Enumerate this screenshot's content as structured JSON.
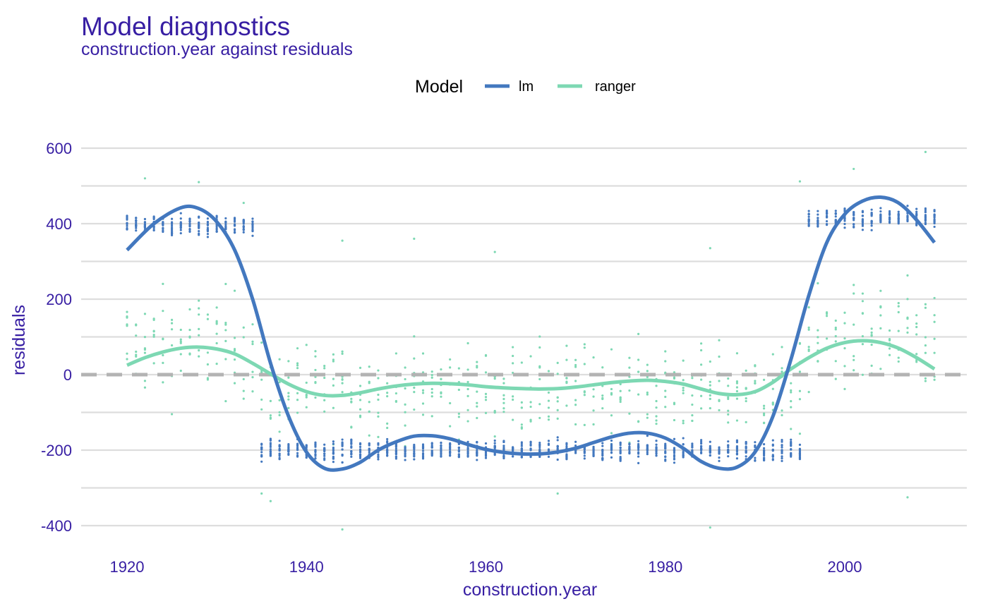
{
  "chart_data": {
    "type": "scatter",
    "title": "Model diagnostics",
    "subtitle": "construction.year against residuals",
    "xlabel": "construction.year",
    "ylabel": "residuals",
    "xlim": [
      1917,
      2013
    ],
    "ylim": [
      -460,
      650
    ],
    "x_ticks": [
      1920,
      1940,
      1960,
      1980,
      2000
    ],
    "y_ticks": [
      -400,
      -200,
      0,
      200,
      400,
      600
    ],
    "x_tick_labels": [
      "1920",
      "1940",
      "1960",
      "1980",
      "2000"
    ],
    "y_tick_labels": [
      "-400",
      "-200",
      "0",
      "200",
      "400",
      "600"
    ],
    "reference_line": 0,
    "grid": true,
    "legend": {
      "title": "Model",
      "position": "top"
    },
    "series": [
      {
        "name": "lm",
        "color": "#4378bf",
        "points_description": "dense residual clusters: ~+400 for 1920-1935 and 1995-2010, ~-200 for 1935-1995",
        "point_clusters": [
          {
            "x_range": [
              1920,
              1934
            ],
            "y_center": 395,
            "y_spread": 45
          },
          {
            "x_range": [
              1935,
              1995
            ],
            "y_center": -200,
            "y_spread": 45
          },
          {
            "x_range": [
              1996,
              2010
            ],
            "y_center": 415,
            "y_spread": 45
          }
        ],
        "smooth": [
          [
            1920,
            330
          ],
          [
            1923,
            400
          ],
          [
            1926,
            442
          ],
          [
            1928,
            440
          ],
          [
            1930,
            405
          ],
          [
            1932,
            330
          ],
          [
            1934,
            200
          ],
          [
            1936,
            30
          ],
          [
            1938,
            -110
          ],
          [
            1940,
            -205
          ],
          [
            1942,
            -248
          ],
          [
            1944,
            -250
          ],
          [
            1946,
            -232
          ],
          [
            1948,
            -200
          ],
          [
            1950,
            -178
          ],
          [
            1952,
            -163
          ],
          [
            1954,
            -162
          ],
          [
            1956,
            -170
          ],
          [
            1958,
            -185
          ],
          [
            1960,
            -198
          ],
          [
            1962,
            -206
          ],
          [
            1964,
            -210
          ],
          [
            1966,
            -210
          ],
          [
            1968,
            -205
          ],
          [
            1970,
            -195
          ],
          [
            1972,
            -180
          ],
          [
            1974,
            -165
          ],
          [
            1976,
            -155
          ],
          [
            1978,
            -155
          ],
          [
            1980,
            -168
          ],
          [
            1982,
            -195
          ],
          [
            1984,
            -230
          ],
          [
            1986,
            -248
          ],
          [
            1988,
            -245
          ],
          [
            1990,
            -205
          ],
          [
            1992,
            -110
          ],
          [
            1994,
            40
          ],
          [
            1996,
            210
          ],
          [
            1998,
            350
          ],
          [
            2000,
            425
          ],
          [
            2002,
            460
          ],
          [
            2004,
            470
          ],
          [
            2006,
            455
          ],
          [
            2008,
            410
          ],
          [
            2010,
            350
          ]
        ]
      },
      {
        "name": "ranger",
        "color": "#7dd8b3",
        "points_description": "scattered residuals mostly between -300 and 300 across all years",
        "point_clusters": [
          {
            "x_range": [
              1920,
              1934
            ],
            "y_center": 80,
            "y_spread": 220
          },
          {
            "x_range": [
              1935,
              1995
            ],
            "y_center": -40,
            "y_spread": 180
          },
          {
            "x_range": [
              1996,
              2010
            ],
            "y_center": 90,
            "y_spread": 220
          }
        ],
        "outliers": [
          [
            1922,
            520
          ],
          [
            1928,
            510
          ],
          [
            1933,
            455
          ],
          [
            1952,
            360
          ],
          [
            1944,
            355
          ],
          [
            1961,
            325
          ],
          [
            1985,
            335
          ],
          [
            2001,
            545
          ],
          [
            2009,
            590
          ],
          [
            1995,
            512
          ],
          [
            1944,
            -410
          ],
          [
            1985,
            -405
          ],
          [
            1935,
            -315
          ],
          [
            1936,
            -335
          ],
          [
            1968,
            -315
          ],
          [
            2007,
            -325
          ]
        ],
        "smooth": [
          [
            1920,
            25
          ],
          [
            1922,
            45
          ],
          [
            1924,
            60
          ],
          [
            1926,
            70
          ],
          [
            1928,
            73
          ],
          [
            1930,
            68
          ],
          [
            1932,
            55
          ],
          [
            1934,
            30
          ],
          [
            1936,
            2
          ],
          [
            1938,
            -25
          ],
          [
            1940,
            -45
          ],
          [
            1942,
            -55
          ],
          [
            1944,
            -55
          ],
          [
            1946,
            -48
          ],
          [
            1948,
            -38
          ],
          [
            1950,
            -30
          ],
          [
            1952,
            -25
          ],
          [
            1954,
            -23
          ],
          [
            1956,
            -24
          ],
          [
            1958,
            -27
          ],
          [
            1960,
            -32
          ],
          [
            1962,
            -35
          ],
          [
            1964,
            -37
          ],
          [
            1966,
            -38
          ],
          [
            1968,
            -37
          ],
          [
            1970,
            -33
          ],
          [
            1972,
            -27
          ],
          [
            1974,
            -21
          ],
          [
            1976,
            -17
          ],
          [
            1978,
            -15
          ],
          [
            1980,
            -18
          ],
          [
            1982,
            -25
          ],
          [
            1984,
            -38
          ],
          [
            1986,
            -50
          ],
          [
            1988,
            -53
          ],
          [
            1990,
            -45
          ],
          [
            1992,
            -20
          ],
          [
            1994,
            15
          ],
          [
            1996,
            45
          ],
          [
            1998,
            70
          ],
          [
            2000,
            85
          ],
          [
            2002,
            90
          ],
          [
            2004,
            85
          ],
          [
            2006,
            70
          ],
          [
            2008,
            45
          ],
          [
            2010,
            15
          ]
        ]
      }
    ]
  }
}
